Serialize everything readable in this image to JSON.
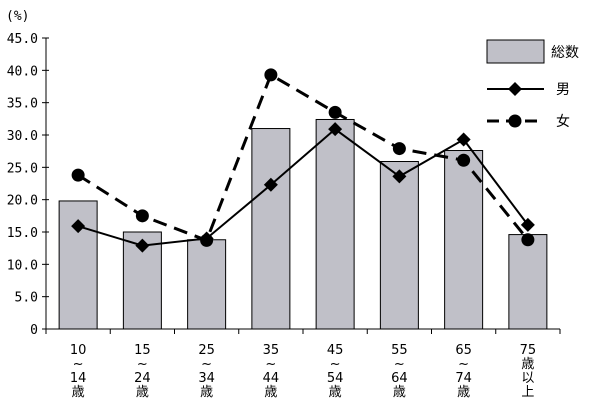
{
  "chart_data": {
    "type": "bar",
    "unit_label": "(%)",
    "ylim": [
      0,
      45
    ],
    "yticks": [
      "0",
      "5.0",
      "10.0",
      "15.0",
      "20.0",
      "25.0",
      "30.0",
      "35.0",
      "40.0",
      "45.0"
    ],
    "ytick_values": [
      0,
      5,
      10,
      15,
      20,
      25,
      30,
      35,
      40,
      45
    ],
    "categories": [
      [
        "10",
        "~",
        "14",
        "歳"
      ],
      [
        "15",
        "~",
        "24",
        "歳"
      ],
      [
        "25",
        "~",
        "34",
        "歳"
      ],
      [
        "35",
        "~",
        "44",
        "歳"
      ],
      [
        "45",
        "~",
        "54",
        "歳"
      ],
      [
        "55",
        "~",
        "64",
        "歳"
      ],
      [
        "65",
        "~",
        "74",
        "歳"
      ],
      [
        "75",
        "歳",
        "以",
        "上"
      ]
    ],
    "legend_position": "top-right",
    "series": [
      {
        "name": "総数",
        "kind": "bar",
        "values": [
          19.8,
          15.0,
          13.8,
          31.0,
          32.4,
          25.9,
          27.6,
          14.6
        ],
        "color": "#c0c0c8"
      },
      {
        "name": "男",
        "kind": "line-diamond",
        "values": [
          15.9,
          12.9,
          14.0,
          22.3,
          30.9,
          23.6,
          29.3,
          16.1
        ],
        "color": "#000000"
      },
      {
        "name": "女",
        "kind": "line-circle-dashed",
        "values": [
          23.8,
          17.5,
          13.7,
          39.3,
          33.5,
          27.9,
          26.1,
          13.8
        ],
        "color": "#000000"
      }
    ]
  }
}
